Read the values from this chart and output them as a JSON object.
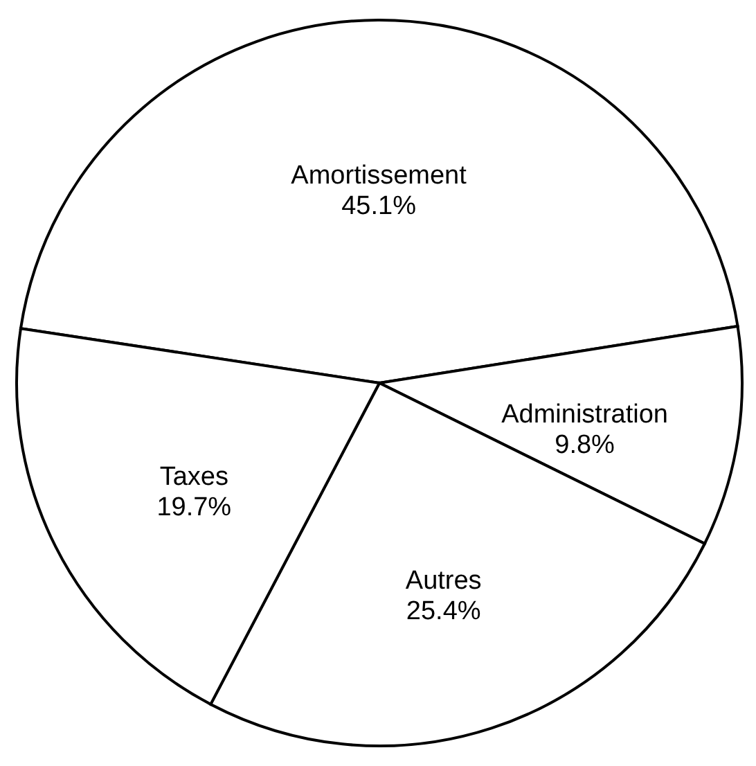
{
  "chart_data": {
    "type": "pie",
    "categories": [
      "Amortissement",
      "Administration",
      "Autres",
      "Taxes"
    ],
    "values": [
      45.1,
      9.8,
      25.4,
      19.7
    ],
    "value_labels": [
      "45.1%",
      "9.8%",
      "25.4%",
      "19.7%"
    ],
    "colors": [
      "#ffffff",
      "#ffffff",
      "#ffffff",
      "#ffffff"
    ],
    "legend": false
  }
}
